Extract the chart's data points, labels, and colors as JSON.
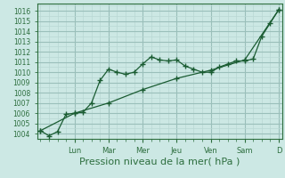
{
  "xlabel": "Pression niveau de la mer( hPa )",
  "background_color": "#cce8e4",
  "grid_color_minor": "#b8d8d4",
  "grid_color_major": "#9abfba",
  "line_color": "#1a5c32",
  "ylim": [
    1003.5,
    1016.7
  ],
  "xlim": [
    -0.1,
    7.1
  ],
  "yticks": [
    1004,
    1005,
    1006,
    1007,
    1008,
    1009,
    1010,
    1011,
    1012,
    1013,
    1014,
    1015,
    1016
  ],
  "day_labels": [
    "Lun",
    "Mar",
    "Mer",
    "Jeu",
    "Ven",
    "Sam",
    "D"
  ],
  "day_positions": [
    1,
    2,
    3,
    4,
    5,
    6,
    7
  ],
  "line1_x": [
    0.0,
    0.25,
    0.5,
    0.75,
    1.0,
    1.25,
    1.5,
    1.75,
    2.0,
    2.25,
    2.5,
    2.75,
    3.0,
    3.25,
    3.5,
    3.75,
    4.0,
    4.25,
    4.5,
    4.75,
    5.0,
    5.25,
    5.5,
    5.75,
    6.0,
    6.25,
    6.5,
    6.75,
    7.0
  ],
  "line1_y": [
    1004.3,
    1003.8,
    1004.2,
    1005.9,
    1006.0,
    1006.1,
    1007.0,
    1009.2,
    1010.3,
    1010.0,
    1009.8,
    1010.0,
    1010.8,
    1011.5,
    1011.2,
    1011.1,
    1011.2,
    1010.6,
    1010.3,
    1010.0,
    1010.0,
    1010.5,
    1010.8,
    1011.1,
    1011.1,
    1011.3,
    1013.5,
    1014.8,
    1016.1
  ],
  "line2_x": [
    0.0,
    1.0,
    2.0,
    3.0,
    4.0,
    5.0,
    6.0,
    7.0
  ],
  "line2_y": [
    1004.3,
    1006.0,
    1007.0,
    1008.3,
    1009.4,
    1010.2,
    1011.2,
    1016.1
  ],
  "marker_size": 4,
  "font_color": "#2d6e3e",
  "tick_color": "#2d6e3e",
  "spine_color": "#2d6e3e",
  "xlabel_fontsize": 8,
  "ytick_fontsize": 5.5,
  "xtick_fontsize": 6
}
